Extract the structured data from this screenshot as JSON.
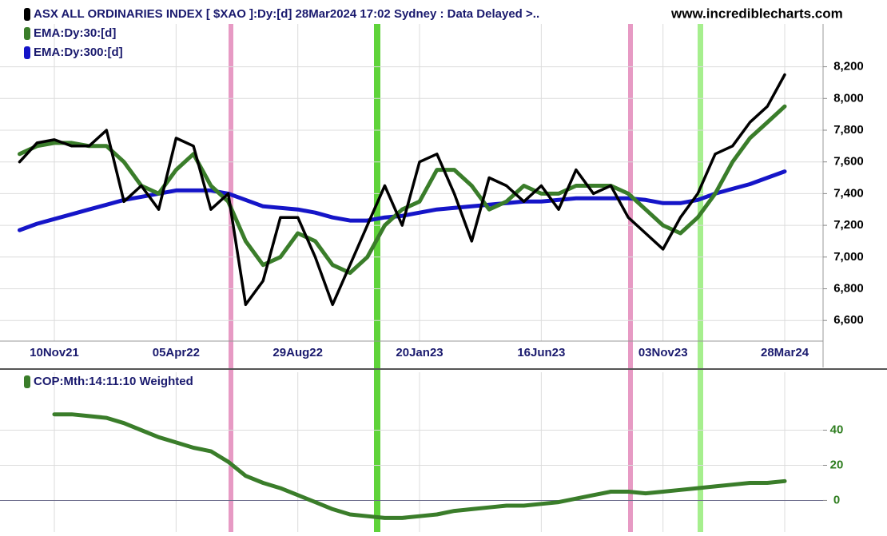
{
  "chart_data": [
    {
      "type": "line",
      "title": "ASX ALL ORDINARIES INDEX [ $XAO ]:Dy:[d]  28Mar2024 17:02 Sydney : Data Delayed >..",
      "source": "www.incrediblecharts.com",
      "categories": [
        null,
        null,
        "10Nov21",
        null,
        null,
        null,
        null,
        null,
        null,
        "05Apr22",
        null,
        null,
        null,
        null,
        null,
        null,
        "29Aug22",
        null,
        null,
        null,
        null,
        null,
        null,
        "20Jan23",
        null,
        null,
        null,
        null,
        null,
        null,
        "16Jun23",
        null,
        null,
        null,
        null,
        null,
        null,
        "03Nov23",
        null,
        null,
        null,
        null,
        null,
        null,
        "28Mar24"
      ],
      "series": [
        {
          "name": "ASX ALL ORDINARIES INDEX",
          "color": "#000000",
          "values": [
            7600,
            7720,
            7740,
            7700,
            7700,
            7800,
            7350,
            7450,
            7300,
            7750,
            7700,
            7300,
            7400,
            6700,
            6850,
            7250,
            7250,
            7000,
            6700,
            6950,
            7200,
            7450,
            7200,
            7600,
            7650,
            7400,
            7100,
            7500,
            7450,
            7350,
            7450,
            7300,
            7550,
            7400,
            7450,
            7250,
            7150,
            7050,
            7250,
            7400,
            7650,
            7700,
            7850,
            7950,
            8150
          ]
        },
        {
          "name": "EMA:Dy:30:[d]",
          "color": "#3a7d2a",
          "values": [
            7650,
            7700,
            7720,
            7720,
            7700,
            7700,
            7600,
            7450,
            7400,
            7550,
            7650,
            7450,
            7350,
            7100,
            6950,
            7000,
            7150,
            7100,
            6950,
            6900,
            7000,
            7200,
            7300,
            7350,
            7550,
            7550,
            7450,
            7300,
            7350,
            7450,
            7400,
            7400,
            7450,
            7450,
            7450,
            7400,
            7300,
            7200,
            7150,
            7250,
            7400,
            7600,
            7750,
            7850,
            7950
          ]
        },
        {
          "name": "EMA:Dy:300:[d]",
          "color": "#1515c8",
          "values": [
            7170,
            7210,
            7240,
            7270,
            7300,
            7330,
            7360,
            7380,
            7400,
            7420,
            7420,
            7420,
            7400,
            7360,
            7320,
            7310,
            7300,
            7280,
            7250,
            7230,
            7230,
            7250,
            7260,
            7280,
            7300,
            7310,
            7320,
            7330,
            7340,
            7350,
            7350,
            7360,
            7370,
            7370,
            7370,
            7370,
            7360,
            7340,
            7340,
            7360,
            7400,
            7430,
            7460,
            7500,
            7540
          ]
        }
      ],
      "ylim": [
        6470,
        8470
      ],
      "yticks": [
        {
          "value": 6600,
          "label": "6,600"
        },
        {
          "value": 6800,
          "label": "6,800"
        },
        {
          "value": 7000,
          "label": "7,000"
        },
        {
          "value": 7200,
          "label": "7,200"
        },
        {
          "value": 7400,
          "label": "7,400"
        },
        {
          "value": 7600,
          "label": "7,600"
        },
        {
          "value": 7800,
          "label": "7,800"
        },
        {
          "value": 8000,
          "label": "8,000"
        },
        {
          "value": 8200,
          "label": "8,200"
        }
      ],
      "grid": true
    },
    {
      "type": "line",
      "series": [
        {
          "name": "COP:Mth:14:11:10 Weighted",
          "color": "#3a7d2a",
          "values": [
            null,
            null,
            49,
            49,
            48,
            47,
            44,
            40,
            36,
            33,
            30,
            28,
            22,
            14,
            10,
            7,
            3,
            -1,
            -5,
            -8,
            -9,
            -10,
            -10,
            -9,
            -8,
            -6,
            -5,
            -4,
            -3,
            -3,
            -2,
            -1,
            1,
            3,
            5,
            5,
            4,
            5,
            6,
            7,
            8,
            9,
            10,
            10,
            11
          ]
        }
      ],
      "ylim": [
        -18,
        73
      ],
      "yticks": [
        0,
        20,
        40
      ],
      "grid": true
    }
  ]
}
